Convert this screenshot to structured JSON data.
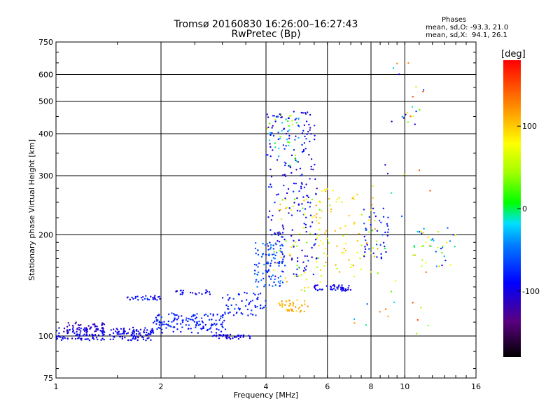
{
  "header": {
    "title_line1": "Tromsø 20160830 16:26:00–16:27:43",
    "title_line2": "RwPretec (Bp)",
    "phase_heading": "Phases",
    "phase_o": "mean, sd,O: -93.3, 21.0",
    "phase_x": "mean, sd,X:  94.1, 26.1"
  },
  "colorbar": {
    "unit": "[deg]",
    "range": [
      -180,
      180
    ],
    "ticks": [
      {
        "value": 100,
        "label": "100"
      },
      {
        "value": 0,
        "label": "0"
      },
      {
        "value": -100,
        "label": "-100"
      }
    ]
  },
  "chart_data": {
    "type": "scatter",
    "title": "Tromsø 20160830 16:26:00–16:27:43",
    "subtitle": "RwPretec (Bp)",
    "xlabel": "Frequency [MHz]",
    "ylabel": "Stationary phase Virtual Height [km]",
    "xscale": "log",
    "yscale": "log",
    "xlim": [
      1,
      16
    ],
    "ylim": [
      75,
      750
    ],
    "x_ticks": [
      1,
      2,
      4,
      6,
      8,
      10,
      16
    ],
    "y_ticks": [
      75,
      100,
      200,
      300,
      400,
      500,
      600,
      750
    ],
    "x_grid": [
      2,
      4,
      6,
      8,
      10
    ],
    "y_grid": [
      100,
      200,
      300,
      400,
      500,
      600
    ],
    "color_encodes": "phase [deg]",
    "clusters": [
      {
        "x": [
          1.0,
          1.9
        ],
        "y": [
          97,
          106
        ],
        "phase": [
          -110,
          -80
        ],
        "n": 200
      },
      {
        "x": [
          1.05,
          1.4
        ],
        "y": [
          103,
          110
        ],
        "phase": [
          -140,
          -100
        ],
        "n": 40
      },
      {
        "x": [
          1.9,
          3.1
        ],
        "y": [
          102,
          117
        ],
        "phase": [
          -95,
          -65
        ],
        "n": 140
      },
      {
        "x": [
          1.6,
          2.0
        ],
        "y": [
          128,
          132
        ],
        "phase": [
          -110,
          -70
        ],
        "n": 30
      },
      {
        "x": [
          2.2,
          2.8
        ],
        "y": [
          133,
          137
        ],
        "phase": [
          -110,
          -80
        ],
        "n": 25
      },
      {
        "x": [
          2.8,
          3.6
        ],
        "y": [
          98,
          101
        ],
        "phase": [
          -105,
          -90
        ],
        "n": 40
      },
      {
        "x": [
          3.0,
          4.0
        ],
        "y": [
          115,
          135
        ],
        "phase": [
          -95,
          -60
        ],
        "n": 60
      },
      {
        "x": [
          3.7,
          4.5
        ],
        "y": [
          140,
          190
        ],
        "phase": [
          -80,
          -40
        ],
        "n": 90
      },
      {
        "x": [
          4.0,
          5.6
        ],
        "y": [
          150,
          470
        ],
        "phase": [
          -120,
          -70
        ],
        "n": 220
      },
      {
        "x": [
          4.0,
          5.0
        ],
        "y": [
          320,
          460
        ],
        "phase": [
          -60,
          60
        ],
        "n": 40
      },
      {
        "x": [
          4.2,
          5.8
        ],
        "y": [
          135,
          260
        ],
        "phase": [
          20,
          120
        ],
        "n": 60
      },
      {
        "x": [
          4.3,
          5.3
        ],
        "y": [
          118,
          128
        ],
        "phase": [
          90,
          130
        ],
        "n": 40
      },
      {
        "x": [
          5.5,
          7.0
        ],
        "y": [
          136,
          142
        ],
        "phase": [
          -110,
          -80
        ],
        "n": 50
      },
      {
        "x": [
          5.5,
          8.5
        ],
        "y": [
          150,
          280
        ],
        "phase": [
          40,
          120
        ],
        "n": 80
      },
      {
        "x": [
          7.5,
          9.0
        ],
        "y": [
          170,
          240
        ],
        "phase": [
          -110,
          -60
        ],
        "n": 40
      },
      {
        "x": [
          9.0,
          11.5
        ],
        "y": [
          400,
          650
        ],
        "phase": [
          -120,
          160
        ],
        "n": 20
      },
      {
        "x": [
          10.5,
          14.0
        ],
        "y": [
          160,
          210
        ],
        "phase": [
          -100,
          120
        ],
        "n": 40
      },
      {
        "x": [
          7.0,
          12.0
        ],
        "y": [
          100,
          330
        ],
        "phase": [
          -120,
          160
        ],
        "n": 30
      }
    ]
  }
}
